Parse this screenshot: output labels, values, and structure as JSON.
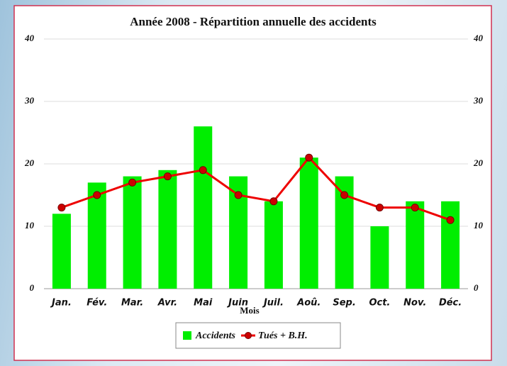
{
  "chart_data": {
    "type": "bar",
    "title": "Année 2008 - Répartition annuelle des accidents",
    "x_label": "Mois",
    "categories": [
      "Jan.",
      "Fév.",
      "Mar.",
      "Avr.",
      "Mai",
      "Juin",
      "Juil.",
      "Aoû.",
      "Sep.",
      "Oct.",
      "Nov.",
      "Déc."
    ],
    "series": [
      {
        "name": "Accidents",
        "type": "bar",
        "color": "#00ee00",
        "values": [
          12,
          17,
          18,
          19,
          26,
          18,
          14,
          21,
          18,
          10,
          14,
          14
        ]
      },
      {
        "name": "Tués + B.H.",
        "type": "line",
        "axis": "y2",
        "color": "#ee0000",
        "values": [
          13,
          15,
          17,
          18,
          19,
          15,
          14,
          21,
          15,
          13,
          13,
          11
        ]
      }
    ],
    "ylim": [
      0,
      40
    ],
    "yticks": [
      0,
      10,
      20,
      30,
      40
    ],
    "y2lim": [
      0,
      40
    ],
    "y2ticks": [
      0,
      10,
      20,
      30,
      40
    ],
    "grid": true,
    "legend": "bottom"
  }
}
